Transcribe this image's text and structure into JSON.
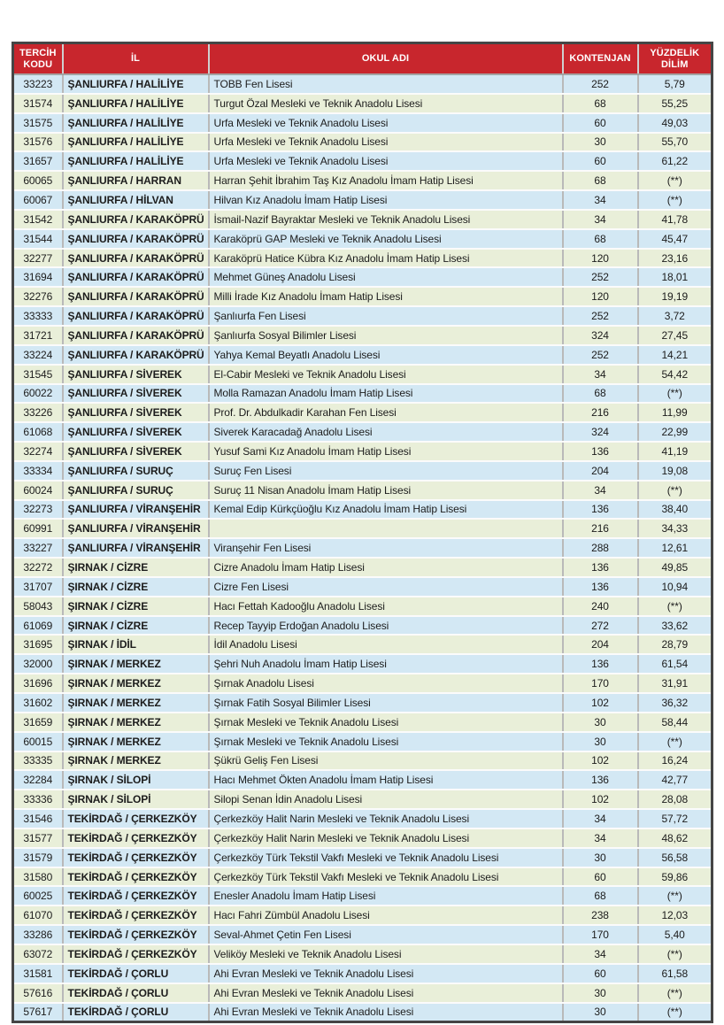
{
  "colors": {
    "header_bg": "#c8262d",
    "header_text": "#ffffff",
    "row_blue": "#d3e8f4",
    "row_green": "#e9efd9",
    "code_text": "#c0403a",
    "body_text": "#1c1c1c",
    "border_dark": "#454545",
    "border_vertical": "#b9b9b9",
    "border_horizontal": "#fbfbfb"
  },
  "table": {
    "headers": [
      "TERCİH KODU",
      "İL",
      "OKUL ADI",
      "KONTENJAN",
      "YÜZDELİK DİLİM"
    ],
    "rows": [
      {
        "kod": "33223",
        "il": "ŞANLIURFA / HALİLİYE",
        "okul": "TOBB Fen Lisesi",
        "kontenjan": "252",
        "dilim": "5,79"
      },
      {
        "kod": "31574",
        "il": "ŞANLIURFA / HALİLİYE",
        "okul": "Turgut Özal Mesleki ve Teknik Anadolu Lisesi",
        "kontenjan": "68",
        "dilim": "55,25"
      },
      {
        "kod": "31575",
        "il": "ŞANLIURFA / HALİLİYE",
        "okul": "Urfa Mesleki ve Teknik Anadolu Lisesi",
        "kontenjan": "60",
        "dilim": "49,03"
      },
      {
        "kod": "31576",
        "il": "ŞANLIURFA / HALİLİYE",
        "okul": "Urfa Mesleki ve Teknik Anadolu Lisesi",
        "kontenjan": "30",
        "dilim": "55,70"
      },
      {
        "kod": "31657",
        "il": "ŞANLIURFA / HALİLİYE",
        "okul": "Urfa Mesleki ve Teknik Anadolu Lisesi",
        "kontenjan": "60",
        "dilim": "61,22"
      },
      {
        "kod": "60065",
        "il": "ŞANLIURFA / HARRAN",
        "okul": "Harran Şehit İbrahim Taş Kız Anadolu İmam Hatip Lisesi",
        "kontenjan": "68",
        "dilim": "(**)"
      },
      {
        "kod": "60067",
        "il": "ŞANLIURFA / HİLVAN",
        "okul": "Hilvan Kız Anadolu İmam Hatip Lisesi",
        "kontenjan": "34",
        "dilim": "(**)"
      },
      {
        "kod": "31542",
        "il": "ŞANLIURFA / KARAKÖPRÜ",
        "okul": "İsmail-Nazif Bayraktar Mesleki ve Teknik Anadolu Lisesi",
        "kontenjan": "34",
        "dilim": "41,78"
      },
      {
        "kod": "31544",
        "il": "ŞANLIURFA / KARAKÖPRÜ",
        "okul": "Karaköprü GAP Mesleki ve Teknik Anadolu Lisesi",
        "kontenjan": "68",
        "dilim": "45,47"
      },
      {
        "kod": "32277",
        "il": "ŞANLIURFA / KARAKÖPRÜ",
        "okul": "Karaköprü Hatice Kübra Kız Anadolu İmam Hatip Lisesi",
        "kontenjan": "120",
        "dilim": "23,16"
      },
      {
        "kod": "31694",
        "il": "ŞANLIURFA / KARAKÖPRÜ",
        "okul": "Mehmet Güneş Anadolu Lisesi",
        "kontenjan": "252",
        "dilim": "18,01"
      },
      {
        "kod": "32276",
        "il": "ŞANLIURFA / KARAKÖPRÜ",
        "okul": "Milli İrade Kız Anadolu İmam Hatip Lisesi",
        "kontenjan": "120",
        "dilim": "19,19"
      },
      {
        "kod": "33333",
        "il": "ŞANLIURFA / KARAKÖPRÜ",
        "okul": "Şanlıurfa Fen Lisesi",
        "kontenjan": "252",
        "dilim": "3,72"
      },
      {
        "kod": "31721",
        "il": "ŞANLIURFA / KARAKÖPRÜ",
        "okul": "Şanlıurfa Sosyal Bilimler Lisesi",
        "kontenjan": "324",
        "dilim": "27,45"
      },
      {
        "kod": "33224",
        "il": "ŞANLIURFA / KARAKÖPRÜ",
        "okul": "Yahya Kemal Beyatlı Anadolu Lisesi",
        "kontenjan": "252",
        "dilim": "14,21"
      },
      {
        "kod": "31545",
        "il": "ŞANLIURFA / SİVEREK",
        "okul": "El-Cabir Mesleki ve Teknik Anadolu Lisesi",
        "kontenjan": "34",
        "dilim": "54,42"
      },
      {
        "kod": "60022",
        "il": "ŞANLIURFA / SİVEREK",
        "okul": "Molla Ramazan Anadolu İmam Hatip Lisesi",
        "kontenjan": "68",
        "dilim": "(**)"
      },
      {
        "kod": "33226",
        "il": "ŞANLIURFA / SİVEREK",
        "okul": "Prof. Dr. Abdulkadir Karahan Fen Lisesi",
        "kontenjan": "216",
        "dilim": "11,99"
      },
      {
        "kod": "61068",
        "il": "ŞANLIURFA / SİVEREK",
        "okul": "Siverek Karacadağ Anadolu Lisesi",
        "kontenjan": "324",
        "dilim": "22,99"
      },
      {
        "kod": "32274",
        "il": "ŞANLIURFA / SİVEREK",
        "okul": "Yusuf Sami Kız Anadolu İmam Hatip Lisesi",
        "kontenjan": "136",
        "dilim": "41,19"
      },
      {
        "kod": "33334",
        "il": "ŞANLIURFA / SURUÇ",
        "okul": "Suruç Fen Lisesi",
        "kontenjan": "204",
        "dilim": "19,08"
      },
      {
        "kod": "60024",
        "il": "ŞANLIURFA / SURUÇ",
        "okul": "Suruç 11 Nisan Anadolu İmam Hatip Lisesi",
        "kontenjan": "34",
        "dilim": "(**)"
      },
      {
        "kod": "32273",
        "il": "ŞANLIURFA / VİRANŞEHİR",
        "okul": "Kemal Edip Kürkçüoğlu Kız Anadolu İmam Hatip Lisesi",
        "kontenjan": "136",
        "dilim": "38,40"
      },
      {
        "kod": "60991",
        "il": "ŞANLIURFA / VİRANŞEHİR",
        "okul": "",
        "kontenjan": "216",
        "dilim": "34,33"
      },
      {
        "kod": "33227",
        "il": "ŞANLIURFA / VİRANŞEHİR",
        "okul": "Viranşehir Fen Lisesi",
        "kontenjan": "288",
        "dilim": "12,61"
      },
      {
        "kod": "32272",
        "il": "ŞIRNAK / CİZRE",
        "okul": "Cizre Anadolu İmam Hatip Lisesi",
        "kontenjan": "136",
        "dilim": "49,85"
      },
      {
        "kod": "31707",
        "il": "ŞIRNAK / CİZRE",
        "okul": "Cizre Fen Lisesi",
        "kontenjan": "136",
        "dilim": "10,94"
      },
      {
        "kod": "58043",
        "il": "ŞIRNAK / CİZRE",
        "okul": "Hacı Fettah Kadooğlu Anadolu Lisesi",
        "kontenjan": "240",
        "dilim": "(**)"
      },
      {
        "kod": "61069",
        "il": "ŞIRNAK / CİZRE",
        "okul": "Recep Tayyip Erdoğan Anadolu Lisesi",
        "kontenjan": "272",
        "dilim": "33,62"
      },
      {
        "kod": "31695",
        "il": "ŞIRNAK / İDİL",
        "okul": "İdil Anadolu Lisesi",
        "kontenjan": "204",
        "dilim": "28,79"
      },
      {
        "kod": "32000",
        "il": "ŞIRNAK / MERKEZ",
        "okul": "Şehri Nuh Anadolu İmam Hatip Lisesi",
        "kontenjan": "136",
        "dilim": "61,54"
      },
      {
        "kod": "31696",
        "il": "ŞIRNAK / MERKEZ",
        "okul": "Şırnak Anadolu Lisesi",
        "kontenjan": "170",
        "dilim": "31,91"
      },
      {
        "kod": "31602",
        "il": "ŞIRNAK / MERKEZ",
        "okul": "Şırnak Fatih Sosyal Bilimler Lisesi",
        "kontenjan": "102",
        "dilim": "36,32"
      },
      {
        "kod": "31659",
        "il": "ŞIRNAK / MERKEZ",
        "okul": "Şırnak Mesleki ve Teknik Anadolu Lisesi",
        "kontenjan": "30",
        "dilim": "58,44"
      },
      {
        "kod": "60015",
        "il": "ŞIRNAK / MERKEZ",
        "okul": "Şırnak Mesleki ve Teknik Anadolu Lisesi",
        "kontenjan": "30",
        "dilim": "(**)"
      },
      {
        "kod": "33335",
        "il": "ŞIRNAK / MERKEZ",
        "okul": "Şükrü Geliş Fen Lisesi",
        "kontenjan": "102",
        "dilim": "16,24"
      },
      {
        "kod": "32284",
        "il": "ŞIRNAK / SİLOPİ",
        "okul": "Hacı Mehmet Ökten Anadolu İmam Hatip Lisesi",
        "kontenjan": "136",
        "dilim": "42,77"
      },
      {
        "kod": "33336",
        "il": "ŞIRNAK / SİLOPİ",
        "okul": "Silopi Senan İdin Anadolu Lisesi",
        "kontenjan": "102",
        "dilim": "28,08"
      },
      {
        "kod": "31546",
        "il": "TEKİRDAĞ / ÇERKEZKÖY",
        "okul": "Çerkezköy Halit Narin Mesleki ve Teknik Anadolu Lisesi",
        "kontenjan": "34",
        "dilim": "57,72"
      },
      {
        "kod": "31577",
        "il": "TEKİRDAĞ / ÇERKEZKÖY",
        "okul": "Çerkezköy Halit Narin Mesleki ve Teknik Anadolu Lisesi",
        "kontenjan": "34",
        "dilim": "48,62"
      },
      {
        "kod": "31579",
        "il": "TEKİRDAĞ / ÇERKEZKÖY",
        "okul": "Çerkezköy Türk Tekstil Vakfı Mesleki ve Teknik Anadolu Lisesi",
        "kontenjan": "30",
        "dilim": "56,58"
      },
      {
        "kod": "31580",
        "il": "TEKİRDAĞ / ÇERKEZKÖY",
        "okul": "Çerkezköy Türk Tekstil Vakfı Mesleki ve Teknik Anadolu Lisesi",
        "kontenjan": "60",
        "dilim": "59,86"
      },
      {
        "kod": "60025",
        "il": "TEKİRDAĞ / ÇERKEZKÖY",
        "okul": "Enesler Anadolu İmam Hatip Lisesi",
        "kontenjan": "68",
        "dilim": "(**)"
      },
      {
        "kod": "61070",
        "il": "TEKİRDAĞ / ÇERKEZKÖY",
        "okul": "Hacı Fahri Zümbül Anadolu Lisesi",
        "kontenjan": "238",
        "dilim": "12,03"
      },
      {
        "kod": "33286",
        "il": "TEKİRDAĞ / ÇERKEZKÖY",
        "okul": "Seval-Ahmet Çetin Fen Lisesi",
        "kontenjan": "170",
        "dilim": "5,40"
      },
      {
        "kod": "63072",
        "il": "TEKİRDAĞ / ÇERKEZKÖY",
        "okul": "Veliköy Mesleki ve Teknik Anadolu Lisesi",
        "kontenjan": "34",
        "dilim": "(**)"
      },
      {
        "kod": "31581",
        "il": "TEKİRDAĞ / ÇORLU",
        "okul": "Ahi Evran Mesleki ve Teknik Anadolu Lisesi",
        "kontenjan": "60",
        "dilim": "61,58"
      },
      {
        "kod": "57616",
        "il": "TEKİRDAĞ / ÇORLU",
        "okul": "Ahi Evran Mesleki ve Teknik Anadolu Lisesi",
        "kontenjan": "30",
        "dilim": "(**)"
      },
      {
        "kod": "57617",
        "il": "TEKİRDAĞ / ÇORLU",
        "okul": "Ahi Evran Mesleki ve Teknik Anadolu Lisesi",
        "kontenjan": "30",
        "dilim": "(**)"
      }
    ]
  }
}
